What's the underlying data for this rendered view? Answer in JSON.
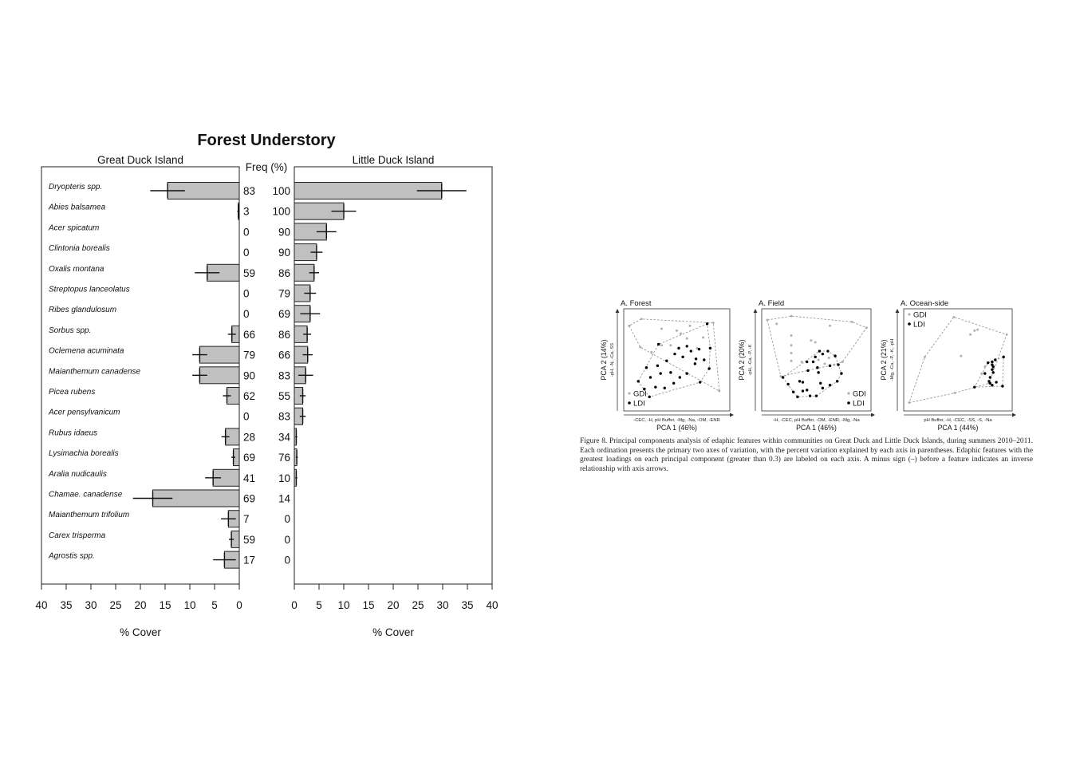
{
  "chart_data": [
    {
      "type": "bar",
      "title": "Forest Understory",
      "left_panel_title": "Great Duck Island",
      "right_panel_title": "Little Duck Island",
      "freq_header": "Freq (%)",
      "xlabel": "% Cover",
      "xlim": [
        0,
        40
      ],
      "ticks": [
        0,
        5,
        10,
        15,
        20,
        25,
        30,
        35,
        40
      ],
      "categories": [
        "Dryopteris spp.",
        "Abies balsamea",
        "Acer spicatum",
        "Clintonia borealis",
        "Oxalis montana",
        "Streptopus lanceolatus",
        "Ribes glandulosum",
        "Sorbus spp.",
        "Oclemena acuminata",
        "Maianthemum canadense",
        "Picea rubens",
        "Acer pensylvanicum",
        "Rubus idaeus",
        "Lysimachia borealis",
        "Aralia nudicaulis",
        "Chamae. canadense",
        "Maianthemum trifolium",
        "Carex trisperma",
        "Agrostis spp."
      ],
      "series": [
        {
          "name": "Great Duck Island",
          "values": [
            14.5,
            0.2,
            0,
            0,
            6.5,
            0,
            0,
            1.5,
            8,
            8,
            2.5,
            0,
            2.8,
            1.2,
            5.3,
            17.5,
            2.2,
            1.6,
            3
          ],
          "errors": [
            3.5,
            0.2,
            0,
            0,
            2.5,
            0,
            0,
            0.8,
            1.5,
            1.5,
            0.8,
            0,
            0.8,
            0.4,
            1.6,
            4,
            1.5,
            0.5,
            2.3
          ],
          "freq": [
            "83",
            "3",
            "0",
            "0",
            "59",
            "0",
            "0",
            "66",
            "79",
            "90",
            "62",
            "0",
            "28",
            "69",
            "41",
            "69",
            "7",
            "59",
            "17"
          ]
        },
        {
          "name": "Little Duck Island",
          "values": [
            29.8,
            10,
            6.5,
            4.5,
            4,
            3.2,
            3.2,
            2.6,
            2.7,
            2.3,
            1.7,
            1.7,
            0.4,
            0.5,
            0.4,
            0,
            0,
            0,
            0
          ],
          "errors": [
            5,
            2.5,
            2,
            1.2,
            1,
            1.2,
            2,
            0.8,
            1,
            1.5,
            0.6,
            0.6,
            0.2,
            0.2,
            0.2,
            0,
            0,
            0,
            0
          ],
          "freq": [
            "100",
            "100",
            "90",
            "90",
            "86",
            "79",
            "69",
            "86",
            "66",
            "83",
            "55",
            "83",
            "34",
            "76",
            "10",
            "14",
            "0",
            "0",
            "0"
          ]
        }
      ]
    },
    {
      "type": "scatter",
      "panels": [
        {
          "title": "A. Forest",
          "xlabel": "PCA 1 (46%)",
          "x_features": "-CEC, -H, pH Buffer, -Mg, -Na, -OM, -ENR",
          "ylabel": "PCA 2 (14%)",
          "y_features": "-pH, -N, -Ca, SS",
          "legend": [
            "GDI",
            "LDI"
          ],
          "legend_position": "bottom-left",
          "xlim": [
            0,
            10
          ],
          "ylim": [
            0,
            10
          ],
          "gdi_points": [
            [
              0.3,
              8.5
            ],
            [
              1.5,
              9.2
            ],
            [
              3.5,
              8.2
            ],
            [
              5,
              8
            ],
            [
              6,
              7.2
            ],
            [
              7,
              6.2
            ],
            [
              7.6,
              7.3
            ],
            [
              8.6,
              8.8
            ],
            [
              9.2,
              1.8
            ],
            [
              2.5,
              5.8
            ],
            [
              3.5,
              6.5
            ],
            [
              4.4,
              6.5
            ],
            [
              5.4,
              7.7
            ],
            [
              1.4,
              6.3
            ],
            [
              6.3,
              8.5
            ]
          ],
          "ldi_points": [
            [
              1.2,
              2.8
            ],
            [
              2,
              4.2
            ],
            [
              2.4,
              3.2
            ],
            [
              2.9,
              2.2
            ],
            [
              3.4,
              3.6
            ],
            [
              3.1,
              4.4
            ],
            [
              4,
              4.9
            ],
            [
              4.4,
              3.7
            ],
            [
              4.8,
              5.6
            ],
            [
              5.2,
              6.2
            ],
            [
              5.6,
              5.3
            ],
            [
              6,
              6.4
            ],
            [
              6.4,
              5.9
            ],
            [
              6.8,
              4.6
            ],
            [
              7.2,
              6.1
            ],
            [
              6,
              3.6
            ],
            [
              5.3,
              3.2
            ],
            [
              4.7,
              2.6
            ],
            [
              3.8,
              2.1
            ],
            [
              2.3,
              1.2
            ],
            [
              1.8,
              2
            ],
            [
              7.7,
              5
            ],
            [
              8,
              8.7
            ],
            [
              8.3,
              6.2
            ],
            [
              3.2,
              6.6
            ],
            [
              7.3,
              2.7
            ],
            [
              6.9,
              5.1
            ],
            [
              8.2,
              4.1
            ]
          ]
        },
        {
          "title": "A. Field",
          "xlabel": "PCA 1 (46%)",
          "x_features": "-H, -CEC, pH Buffer, -OM, -ENR, -Mg, -Na",
          "ylabel": "PCA 2 (20%)",
          "y_features": "-pH, -Ca, -P, -K",
          "legend": [
            "GDI",
            "LDI"
          ],
          "legend_position": "bottom-right",
          "xlim": [
            0,
            10
          ],
          "ylim": [
            0,
            10
          ],
          "gdi_points": [
            [
              0.3,
              9.1
            ],
            [
              1.2,
              8.7
            ],
            [
              2.6,
              9.5
            ],
            [
              6.3,
              8.5
            ],
            [
              8.4,
              8.9
            ],
            [
              9.8,
              8.3
            ],
            [
              2.6,
              7.5
            ],
            [
              2.6,
              6.5
            ],
            [
              2.6,
              5.7
            ],
            [
              4.5,
              7
            ],
            [
              4.9,
              6.8
            ],
            [
              2.6,
              4.9
            ],
            [
              3.6,
              4.8
            ],
            [
              5.2,
              5
            ],
            [
              5.8,
              4.6
            ],
            [
              6.2,
              5.2
            ],
            [
              6.7,
              4.5
            ],
            [
              7.5,
              4.8
            ],
            [
              1.6,
              3.3
            ]
          ],
          "ldi_points": [
            [
              1.8,
              3.2
            ],
            [
              2.3,
              2.5
            ],
            [
              2.8,
              1.7
            ],
            [
              3.2,
              1.2
            ],
            [
              3.7,
              1.8
            ],
            [
              4.4,
              1.3
            ],
            [
              5,
              1.3
            ],
            [
              5.6,
              2.1
            ],
            [
              6.3,
              2.4
            ],
            [
              7,
              2.8
            ],
            [
              7.4,
              3.6
            ],
            [
              7.1,
              4.5
            ],
            [
              6.8,
              5.4
            ],
            [
              6.1,
              5.9
            ],
            [
              5.3,
              5.9
            ],
            [
              4.7,
              4.8
            ],
            [
              4.2,
              3.9
            ],
            [
              3.7,
              2.7
            ],
            [
              5.2,
              3.7
            ],
            [
              4.9,
              5.3
            ],
            [
              6.3,
              4.4
            ],
            [
              4.1,
              4.8
            ],
            [
              5.4,
              2.6
            ],
            [
              4.1,
              1.9
            ],
            [
              3.4,
              2.8
            ],
            [
              5.1,
              4.2
            ],
            [
              5.6,
              5.6
            ]
          ]
        },
        {
          "title": "A. Ocean-side",
          "xlabel": "PCA 1 (44%)",
          "x_features": "pH Buffer, -H, -CEC, -SS, -S, -Na",
          "ylabel": "PCA 2 (21%)",
          "y_features": "-Mg, -Ca, -P, -K, -pH",
          "legend": [
            "GDI",
            "LDI"
          ],
          "legend_position": "top-left",
          "xlim": [
            0,
            10
          ],
          "ylim": [
            0,
            10
          ],
          "gdi_points": [
            [
              0.3,
              0.6
            ],
            [
              1.8,
              5.3
            ],
            [
              4.6,
              9.4
            ],
            [
              6.2,
              7.6
            ],
            [
              6.6,
              8
            ],
            [
              6.9,
              8.1
            ],
            [
              5.3,
              5.4
            ],
            [
              9.7,
              7.6
            ],
            [
              8,
              2.6
            ],
            [
              4.7,
              1.6
            ],
            [
              7.3,
              3.6
            ],
            [
              7.6,
              4.3
            ],
            [
              8.4,
              4.1
            ]
          ],
          "ldi_points": [
            [
              6.6,
              2.2
            ],
            [
              7.6,
              3.6
            ],
            [
              7.9,
              4.7
            ],
            [
              8.3,
              4.8
            ],
            [
              8.3,
              4.5
            ],
            [
              8.3,
              4
            ],
            [
              8.4,
              3.7
            ],
            [
              8.1,
              3.2
            ],
            [
              8,
              2.8
            ],
            [
              8.1,
              2.6
            ],
            [
              8.3,
              2.4
            ],
            [
              8.7,
              2.7
            ],
            [
              9.3,
              2.3
            ],
            [
              9.4,
              5.3
            ],
            [
              8.6,
              5
            ],
            [
              8.4,
              4.3
            ]
          ]
        }
      ]
    }
  ],
  "caption": "Figure 8.  Principal components analysis of edaphic features within communities on Great Duck and Little Duck Islands, during summers 2010–2011. Each ordination presents the primary two axes of variation, with the percent variation explained by each axis in parentheses. Edaphic features with the greatest loadings on each principal component (greater than 0.3) are labeled on each axis. A minus sign (–) before a feature indicates an inverse relationship with axis arrows.",
  "colors": {
    "bar_fill": "#c0c0c0",
    "ldi_point": "#000000",
    "gdi_point": "#b0b0b0",
    "hull": "#8a8a8a"
  }
}
